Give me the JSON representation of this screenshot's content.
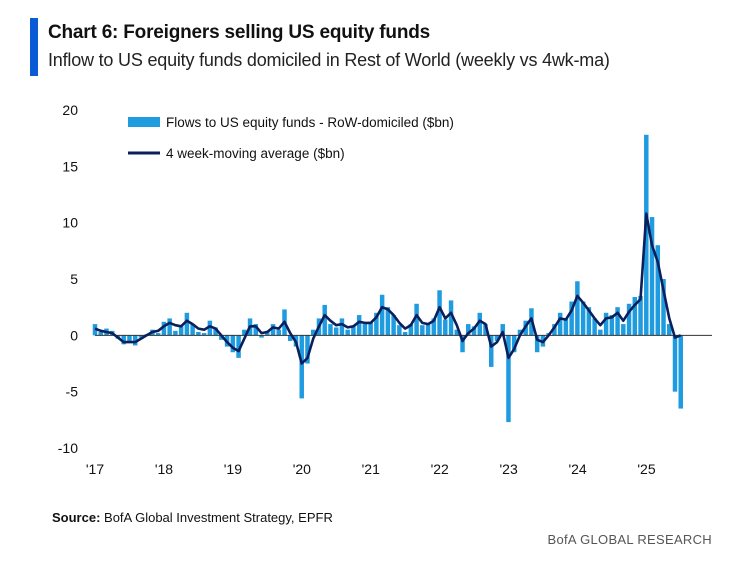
{
  "header": {
    "title": "Chart 6: Foreigners selling US equity funds",
    "subtitle": "Inflow to US equity funds domiciled in Rest of World (weekly vs 4wk-ma)"
  },
  "footer": {
    "source_label": "Source:",
    "source_text": " BofA Global Investment Strategy, EPFR",
    "brand": "BofA GLOBAL RESEARCH"
  },
  "colors": {
    "weekly": "#1f9be0",
    "ma": "#0b1f5c",
    "accent": "#0a5bd6",
    "axis": "#333333"
  },
  "chart_data": {
    "type": "bar",
    "title": "Chart 6: Foreigners selling US equity funds",
    "subtitle": "Inflow to US equity funds domiciled in Rest of World (weekly vs 4wk-ma)",
    "xlabel": "",
    "ylabel": "",
    "ylim": [
      -10,
      20
    ],
    "yticks": [
      20,
      15,
      10,
      5,
      0,
      -5,
      -10
    ],
    "xlim": [
      2017.0,
      2025.95
    ],
    "xticks": [
      {
        "x": 2017.0,
        "label": "'17"
      },
      {
        "x": 2018.0,
        "label": "'18"
      },
      {
        "x": 2019.0,
        "label": "'19"
      },
      {
        "x": 2020.0,
        "label": "'20"
      },
      {
        "x": 2021.0,
        "label": "'21"
      },
      {
        "x": 2022.0,
        "label": "'22"
      },
      {
        "x": 2023.0,
        "label": "'23"
      },
      {
        "x": 2024.0,
        "label": "'24"
      },
      {
        "x": 2025.0,
        "label": "'25"
      }
    ],
    "legend_position": "top-left",
    "series": [
      {
        "name": "Flows to US equity funds - RoW-domiciled ($bn)",
        "style": "bar",
        "x_start": 2017.0,
        "step": 0.0833,
        "values": [
          1.0,
          0.3,
          0.6,
          0.4,
          -0.3,
          -0.8,
          -0.5,
          -0.9,
          -0.2,
          0.1,
          0.5,
          0.2,
          1.2,
          1.5,
          0.4,
          0.8,
          2.0,
          1.0,
          0.3,
          0.2,
          1.3,
          0.7,
          -0.4,
          -1.0,
          -1.5,
          -2.0,
          0.5,
          1.5,
          1.0,
          -0.2,
          0.4,
          1.0,
          0.5,
          2.3,
          -0.5,
          -1.0,
          -5.6,
          -2.5,
          0.5,
          1.5,
          2.7,
          1.0,
          0.7,
          1.5,
          0.5,
          0.8,
          1.8,
          1.0,
          1.2,
          2.0,
          3.6,
          2.5,
          1.8,
          0.9,
          0.3,
          1.0,
          2.8,
          0.9,
          1.0,
          1.5,
          4.0,
          1.4,
          3.1,
          0.5,
          -1.5,
          1.0,
          0.8,
          2.0,
          1.0,
          -2.8,
          -0.5,
          1.0,
          -7.7,
          -1.5,
          0.5,
          1.3,
          2.4,
          -1.5,
          -1.0,
          0.2,
          1.0,
          2.0,
          1.5,
          3.0,
          4.8,
          3.0,
          2.5,
          1.5,
          0.5,
          2.0,
          1.8,
          2.5,
          1.0,
          2.8,
          3.4,
          3.5,
          17.8,
          10.5,
          8.0,
          5.0,
          1.0,
          -5.0,
          -6.5
        ]
      },
      {
        "name": "4 week-moving average ($bn)",
        "style": "line",
        "x_start": 2017.0,
        "step": 0.0833,
        "values": [
          0.6,
          0.4,
          0.3,
          0.2,
          -0.2,
          -0.6,
          -0.6,
          -0.6,
          -0.3,
          0.0,
          0.3,
          0.4,
          0.8,
          1.1,
          0.9,
          0.8,
          1.3,
          1.0,
          0.6,
          0.5,
          0.8,
          0.6,
          0.0,
          -0.6,
          -1.1,
          -1.4,
          -0.3,
          0.8,
          0.8,
          0.2,
          0.3,
          0.7,
          0.6,
          1.2,
          0.2,
          -0.6,
          -2.5,
          -2.0,
          -0.3,
          0.8,
          1.8,
          1.3,
          0.9,
          1.0,
          0.7,
          0.8,
          1.2,
          1.1,
          1.1,
          1.6,
          2.5,
          2.3,
          1.8,
          1.1,
          0.6,
          0.9,
          1.8,
          1.1,
          1.0,
          1.3,
          2.5,
          1.5,
          2.0,
          0.9,
          -0.5,
          0.2,
          0.6,
          1.3,
          1.0,
          -1.0,
          -0.6,
          0.3,
          -2.0,
          -1.2,
          0.0,
          0.8,
          1.5,
          -0.4,
          -0.6,
          0.0,
          0.7,
          1.5,
          1.4,
          2.2,
          3.5,
          2.9,
          2.2,
          1.5,
          0.9,
          1.5,
          1.6,
          2.0,
          1.3,
          2.1,
          2.7,
          3.2,
          10.8,
          8.0,
          6.5,
          4.0,
          1.5,
          -0.2,
          0.0
        ]
      }
    ]
  }
}
